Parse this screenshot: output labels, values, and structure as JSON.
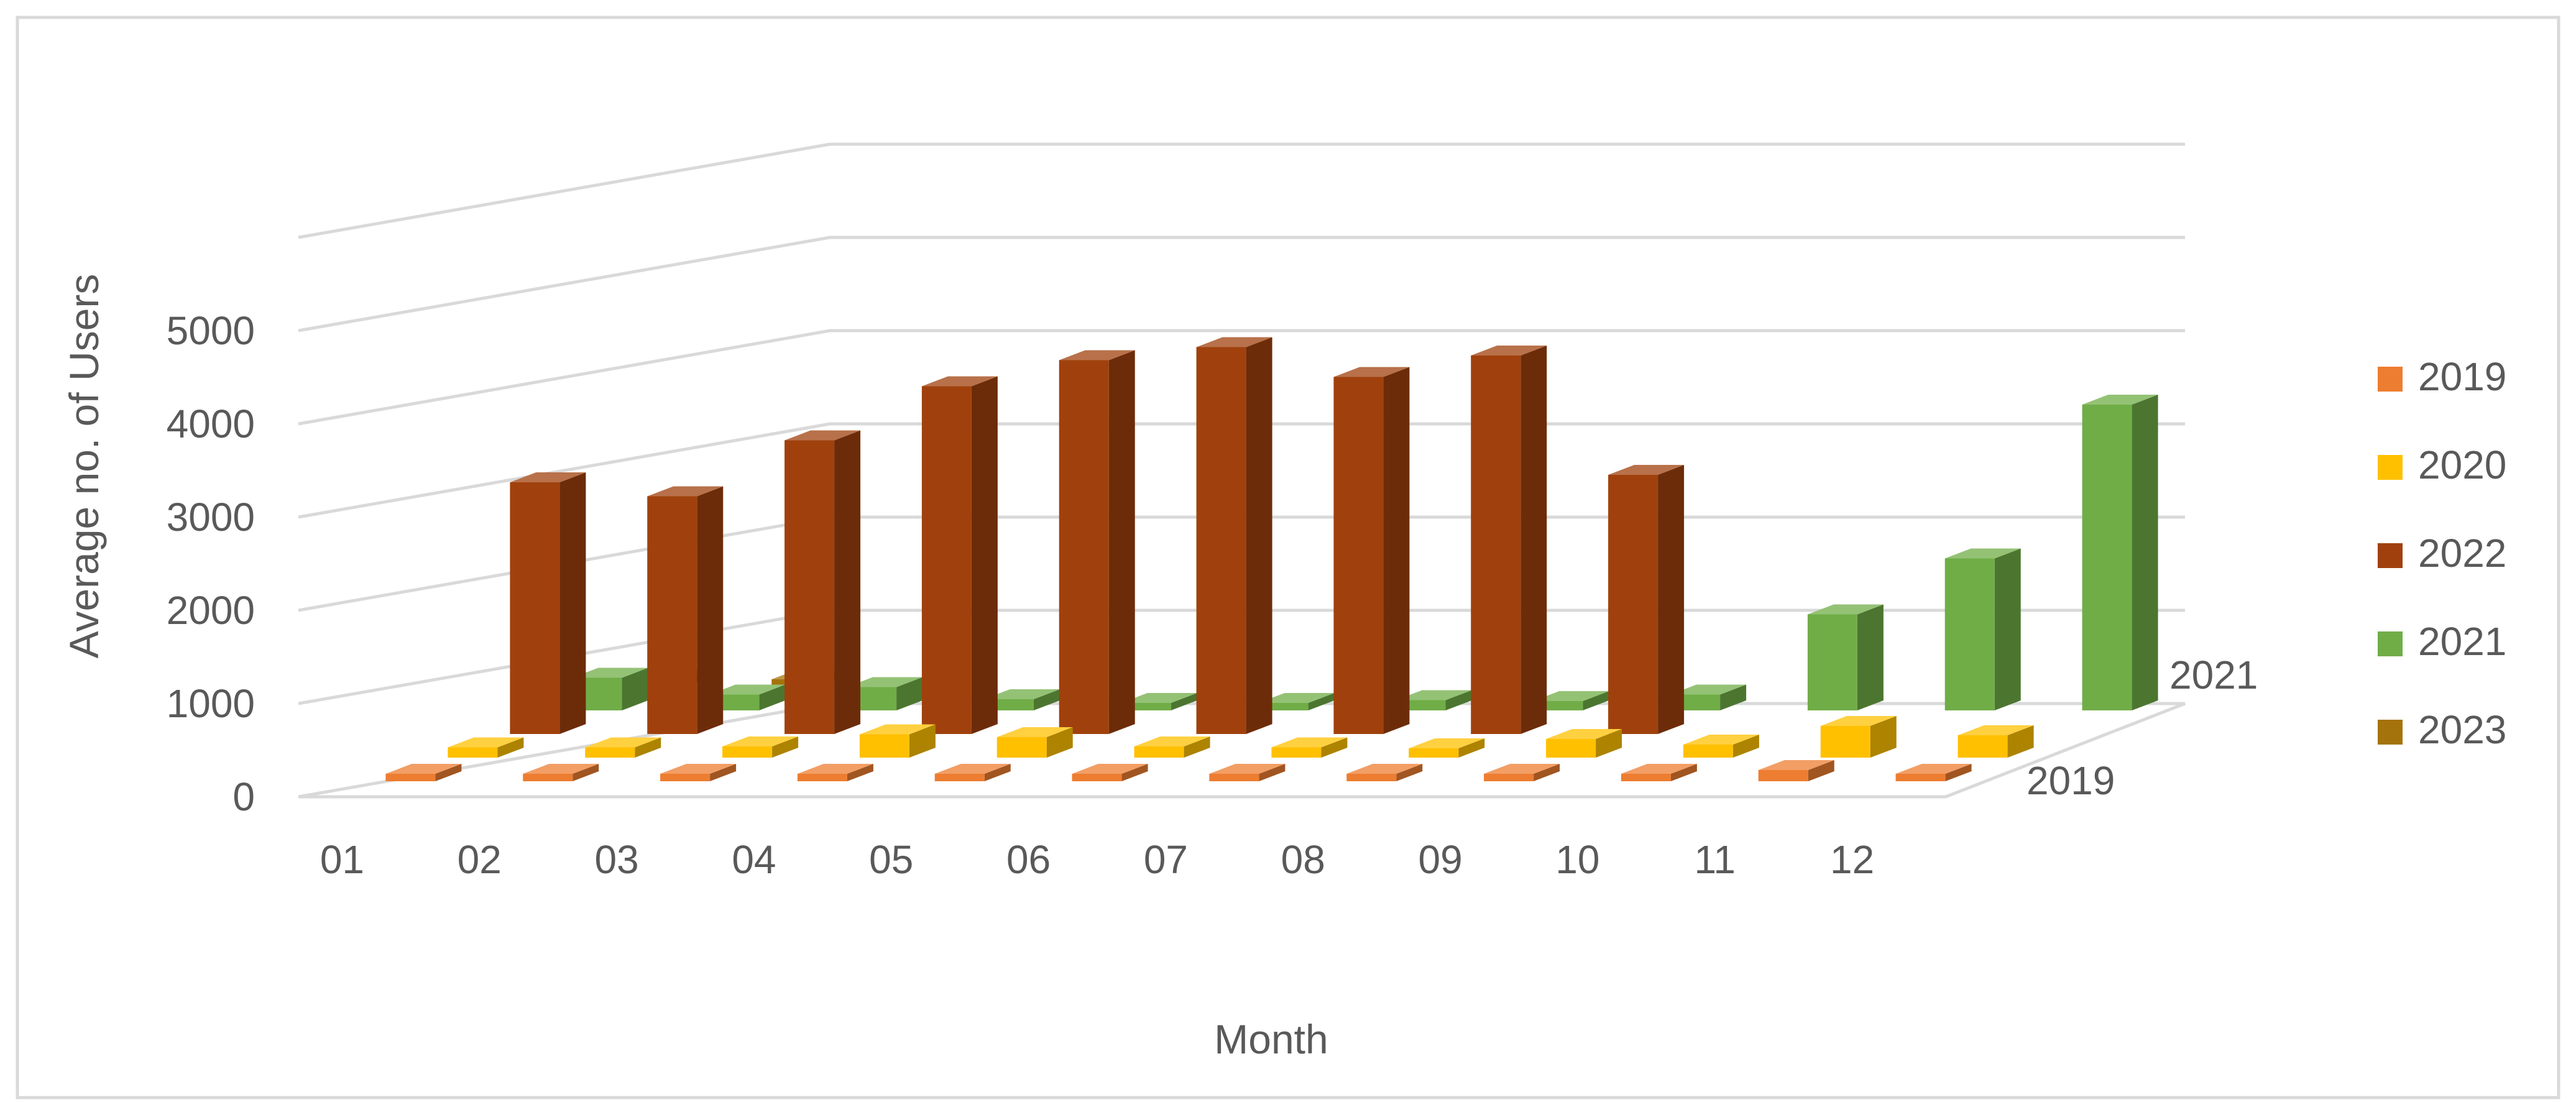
{
  "chart_data": {
    "type": "bar",
    "subtype": "3d-column",
    "title": "",
    "xlabel": "Month",
    "ylabel": "Average no. of Users",
    "categories": [
      "01",
      "02",
      "03",
      "04",
      "05",
      "06",
      "07",
      "08",
      "09",
      "10",
      "11",
      "12"
    ],
    "depth_labels": [
      "2019",
      "2021"
    ],
    "yticks": [
      0,
      1000,
      2000,
      3000,
      4000,
      5000
    ],
    "ylim": [
      0,
      5000
    ],
    "grid": true,
    "legend_position": "right",
    "series": [
      {
        "name": "2019",
        "color": "#ed7d31",
        "values": [
          60,
          60,
          70,
          30,
          30,
          20,
          70,
          30,
          60,
          80,
          120,
          70
        ]
      },
      {
        "name": "2020",
        "color": "#ffc000",
        "values": [
          110,
          110,
          120,
          250,
          220,
          120,
          110,
          100,
          200,
          140,
          340,
          240
        ]
      },
      {
        "name": "2022",
        "color": "#a0410d",
        "values": [
          2700,
          2550,
          3150,
          3730,
          4010,
          4150,
          3830,
          4060,
          2780,
          0,
          0,
          0
        ]
      },
      {
        "name": "2021",
        "color": "#70ad47",
        "values": [
          350,
          170,
          250,
          120,
          70,
          80,
          110,
          100,
          170,
          1030,
          1630,
          3280
        ]
      },
      {
        "name": "2023",
        "color": "#a5730b",
        "values": [
          60,
          70,
          0,
          0,
          0,
          0,
          0,
          0,
          0,
          0,
          0,
          0
        ]
      }
    ]
  }
}
